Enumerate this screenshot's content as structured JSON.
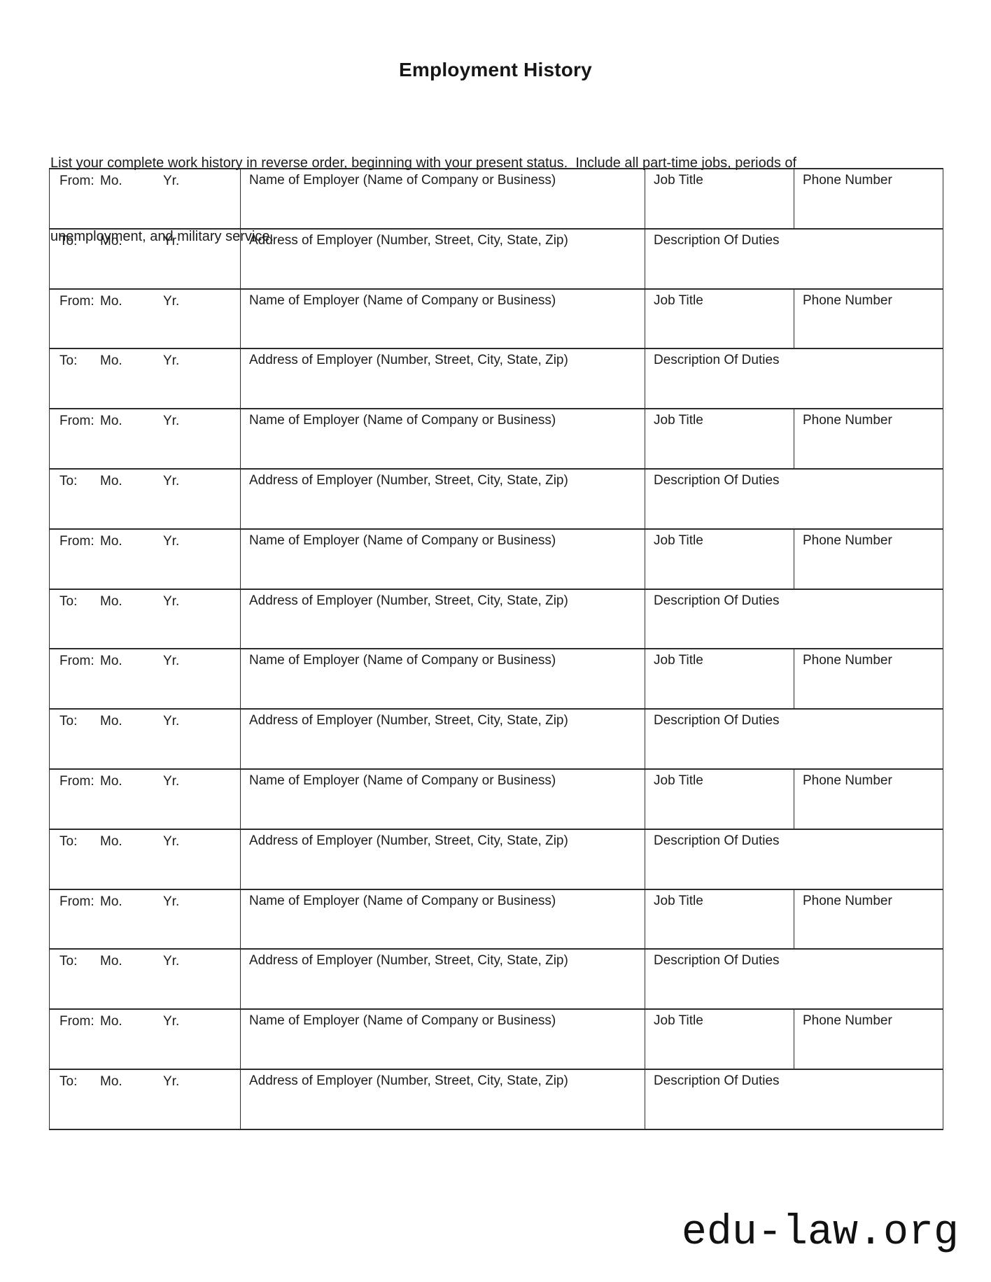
{
  "document": {
    "title": "Employment History",
    "intro_lines": [
      "List your complete work history in reverse order, beginning with your present status.  Include all part-time jobs, periods of",
      "unemployment, and military service."
    ]
  },
  "table": {
    "row_pairs": 8,
    "labels": {
      "from": "From:",
      "to": "To:",
      "month": "Mo.",
      "year": "Yr.",
      "employer_name": "Name of Employer (Name of Company or Business)",
      "employer_address": "Address of Employer (Number, Street, City, State, Zip)",
      "job_title": "Job Title",
      "phone_number": "Phone Number",
      "duties": "Description Of Duties"
    }
  },
  "watermark": {
    "text": "edu-law.org"
  },
  "colors": {
    "ink": "#1c1c1c",
    "border": "#2c2c2c",
    "background": "#ffffff"
  }
}
